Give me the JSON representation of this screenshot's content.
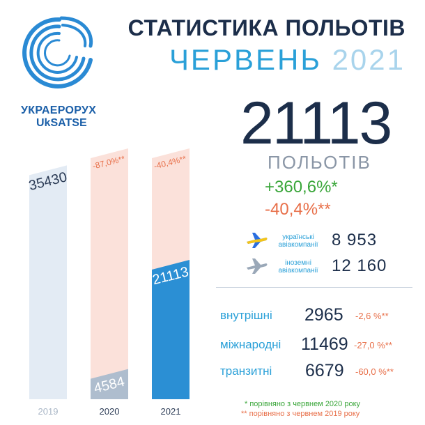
{
  "header": {
    "org_name": "УКРАЕРОРУХ",
    "org_name_latin": "UkSATSE",
    "title": "СТАТИСТИКА ПОЛЬОТІВ",
    "month": "ЧЕРВЕНЬ",
    "year": "2021"
  },
  "summary": {
    "total": "21113",
    "unit": "ПОЛЬОТІВ",
    "change_vs_2020": "+360,6%*",
    "change_vs_2019": "-40,4%**"
  },
  "airlines": [
    {
      "label_line1": "українські",
      "label_line2": "авіакомпанії",
      "value": "8 953",
      "icon": "plane-ukraine-flag-icon",
      "colors": [
        "#2a6ee0",
        "#f5c518"
      ]
    },
    {
      "label_line1": "іноземні",
      "label_line2": "авіакомпанії",
      "value": "12 160",
      "icon": "plane-icon",
      "colors": [
        "#9aa8b8"
      ]
    }
  ],
  "categories": [
    {
      "label": "внутрішні",
      "value": "2965",
      "change": "-2,6 %**"
    },
    {
      "label": "міжнародні",
      "value": "11469",
      "change": "-27,0 %**"
    },
    {
      "label": "транзитні",
      "value": "6679",
      "change": "-60,0 %**"
    }
  ],
  "footnotes": {
    "note1": "* порівняно з червнем 2020 року",
    "note2": "** порівняно з червнем 2019 року"
  },
  "colors": {
    "accent": "#2aa0d8",
    "dark": "#1c2e4a",
    "green": "#3aa63a",
    "orange": "#e8704a"
  },
  "chart_data": {
    "type": "bar",
    "categories": [
      "2019",
      "2020",
      "2021"
    ],
    "values": [
      35430,
      4584,
      21113
    ],
    "value_labels": [
      "35430",
      "4584",
      "21113"
    ],
    "change_labels": [
      "",
      "-87,0%**",
      "-40,4%**"
    ],
    "ylim": [
      0,
      38000
    ],
    "title": "",
    "xlabel": "",
    "ylabel": ""
  }
}
